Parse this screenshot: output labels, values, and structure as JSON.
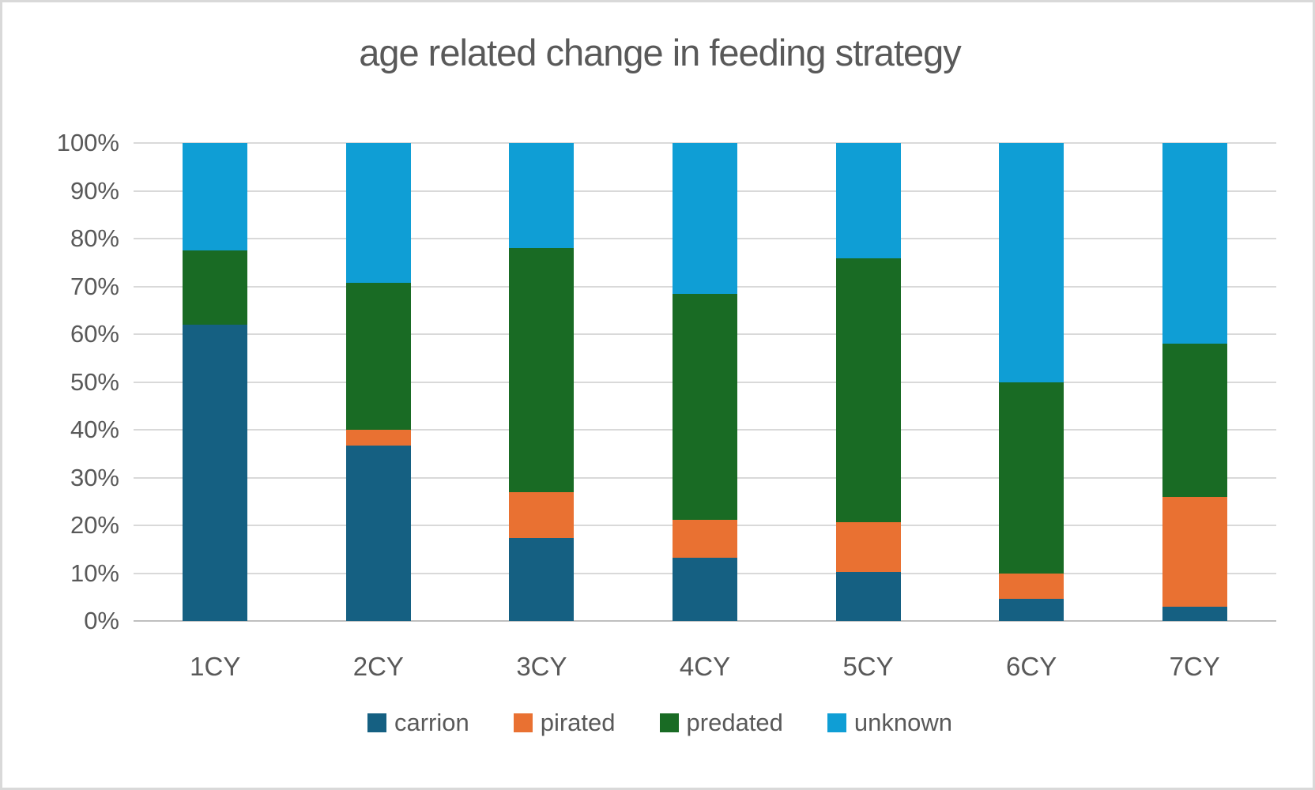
{
  "title": "age related change in feeding strategy",
  "colors": {
    "text": "#595959",
    "gridline": "#d9d9d9",
    "axis_line": "#bfbfbf",
    "frame_border": "#d9d9d9",
    "background": "#ffffff"
  },
  "chart_data": {
    "type": "bar",
    "subtype": "stacked-100-percent-column",
    "title": "age related change in feeding strategy",
    "categories": [
      "1CY",
      "2CY",
      "3CY",
      "4CY",
      "5CY",
      "6CY",
      "7CY"
    ],
    "series": [
      {
        "name": "carrion",
        "color": "#156082",
        "values": [
          62.0,
          36.7,
          17.3,
          13.2,
          10.3,
          4.6,
          3.0
        ]
      },
      {
        "name": "pirated",
        "color": "#e97132",
        "values": [
          0.0,
          3.3,
          9.6,
          7.9,
          10.3,
          5.4,
          23.0
        ]
      },
      {
        "name": "predated",
        "color": "#196b24",
        "values": [
          15.5,
          30.7,
          51.2,
          47.4,
          55.2,
          40.0,
          32.0
        ]
      },
      {
        "name": "unknown",
        "color": "#0f9ed5",
        "values": [
          22.5,
          29.3,
          21.9,
          31.5,
          24.2,
          50.0,
          42.0
        ]
      }
    ],
    "y_ticks": [
      "0%",
      "10%",
      "20%",
      "30%",
      "40%",
      "50%",
      "60%",
      "70%",
      "80%",
      "90%",
      "100%"
    ],
    "ylim": [
      0,
      100
    ],
    "xlabel": "",
    "ylabel": "",
    "grid": true,
    "legend_position": "bottom"
  }
}
